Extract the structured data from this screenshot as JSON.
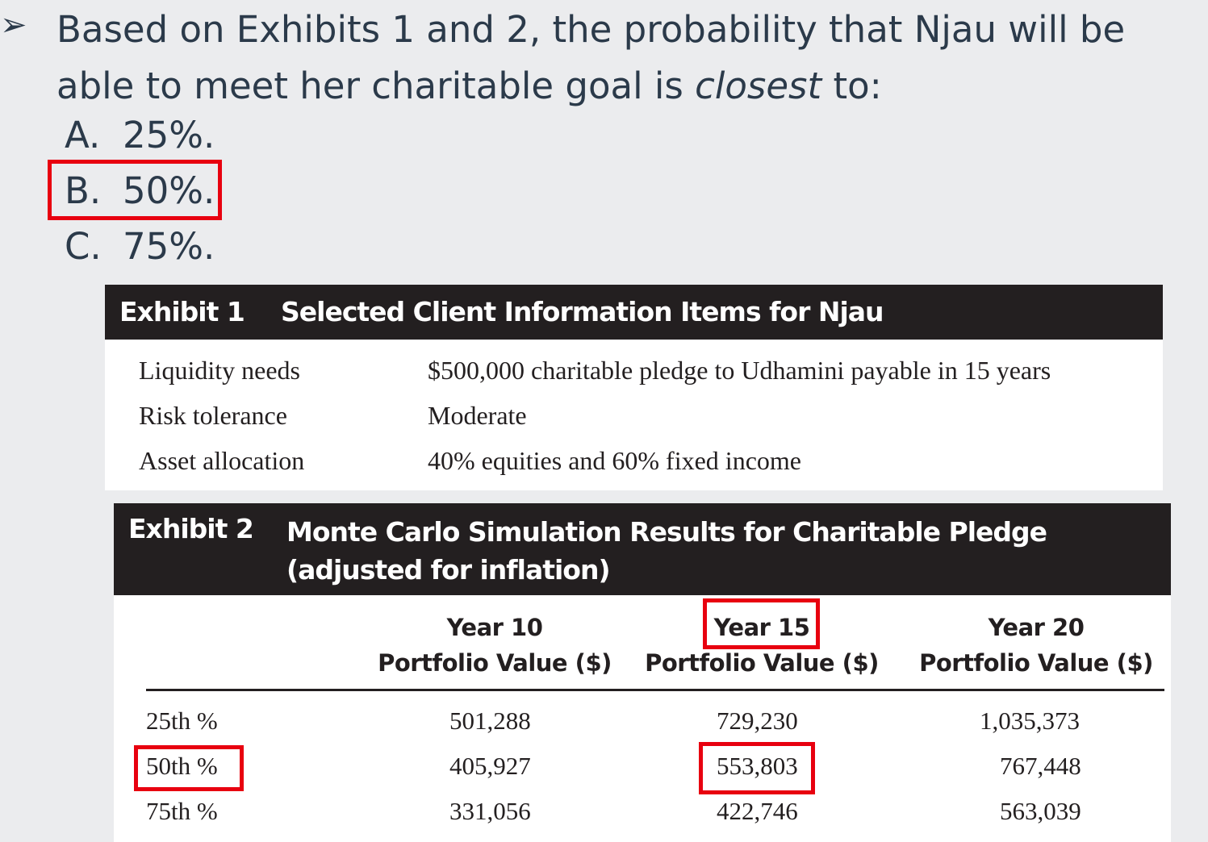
{
  "question": {
    "bullet": "➢",
    "text_before": "Based on Exhibits 1 and 2, the probability that Njau will be able to meet her charitable goal is ",
    "text_italic": "closest",
    "text_after": " to:",
    "options": [
      {
        "letter": "A.",
        "text": "25%."
      },
      {
        "letter": "B.",
        "text": "50%."
      },
      {
        "letter": "C.",
        "text": "75%."
      }
    ],
    "highlight_color": "#e8000f"
  },
  "exhibit1": {
    "number": "Exhibit 1",
    "title": "Selected Client Information Items for Njau",
    "rows": [
      {
        "label": "Liquidity needs",
        "value": "$500,000 charitable pledge to Udhamini payable in 15 years"
      },
      {
        "label": "Risk tolerance",
        "value": "Moderate"
      },
      {
        "label": "Asset allocation",
        "value": "40% equities and 60% fixed income"
      }
    ]
  },
  "exhibit2": {
    "number": "Exhibit 2",
    "title": "Monte Carlo Simulation Results for Charitable Pledge (adjusted for inflation)",
    "columns": [
      {
        "year": "Year 10",
        "sub": "Portfolio Value ($)"
      },
      {
        "year": "Year 15",
        "sub": "Portfolio Value ($)"
      },
      {
        "year": "Year 20",
        "sub": "Portfolio Value ($)"
      }
    ],
    "rows": [
      {
        "label": "25th %",
        "values": [
          "501,288",
          "729,230",
          "1,035,373"
        ]
      },
      {
        "label": "50th %",
        "values": [
          "405,927",
          "553,803",
          "767,448"
        ]
      },
      {
        "label": "75th %",
        "values": [
          "331,056",
          "422,746",
          "563,039"
        ]
      }
    ]
  }
}
